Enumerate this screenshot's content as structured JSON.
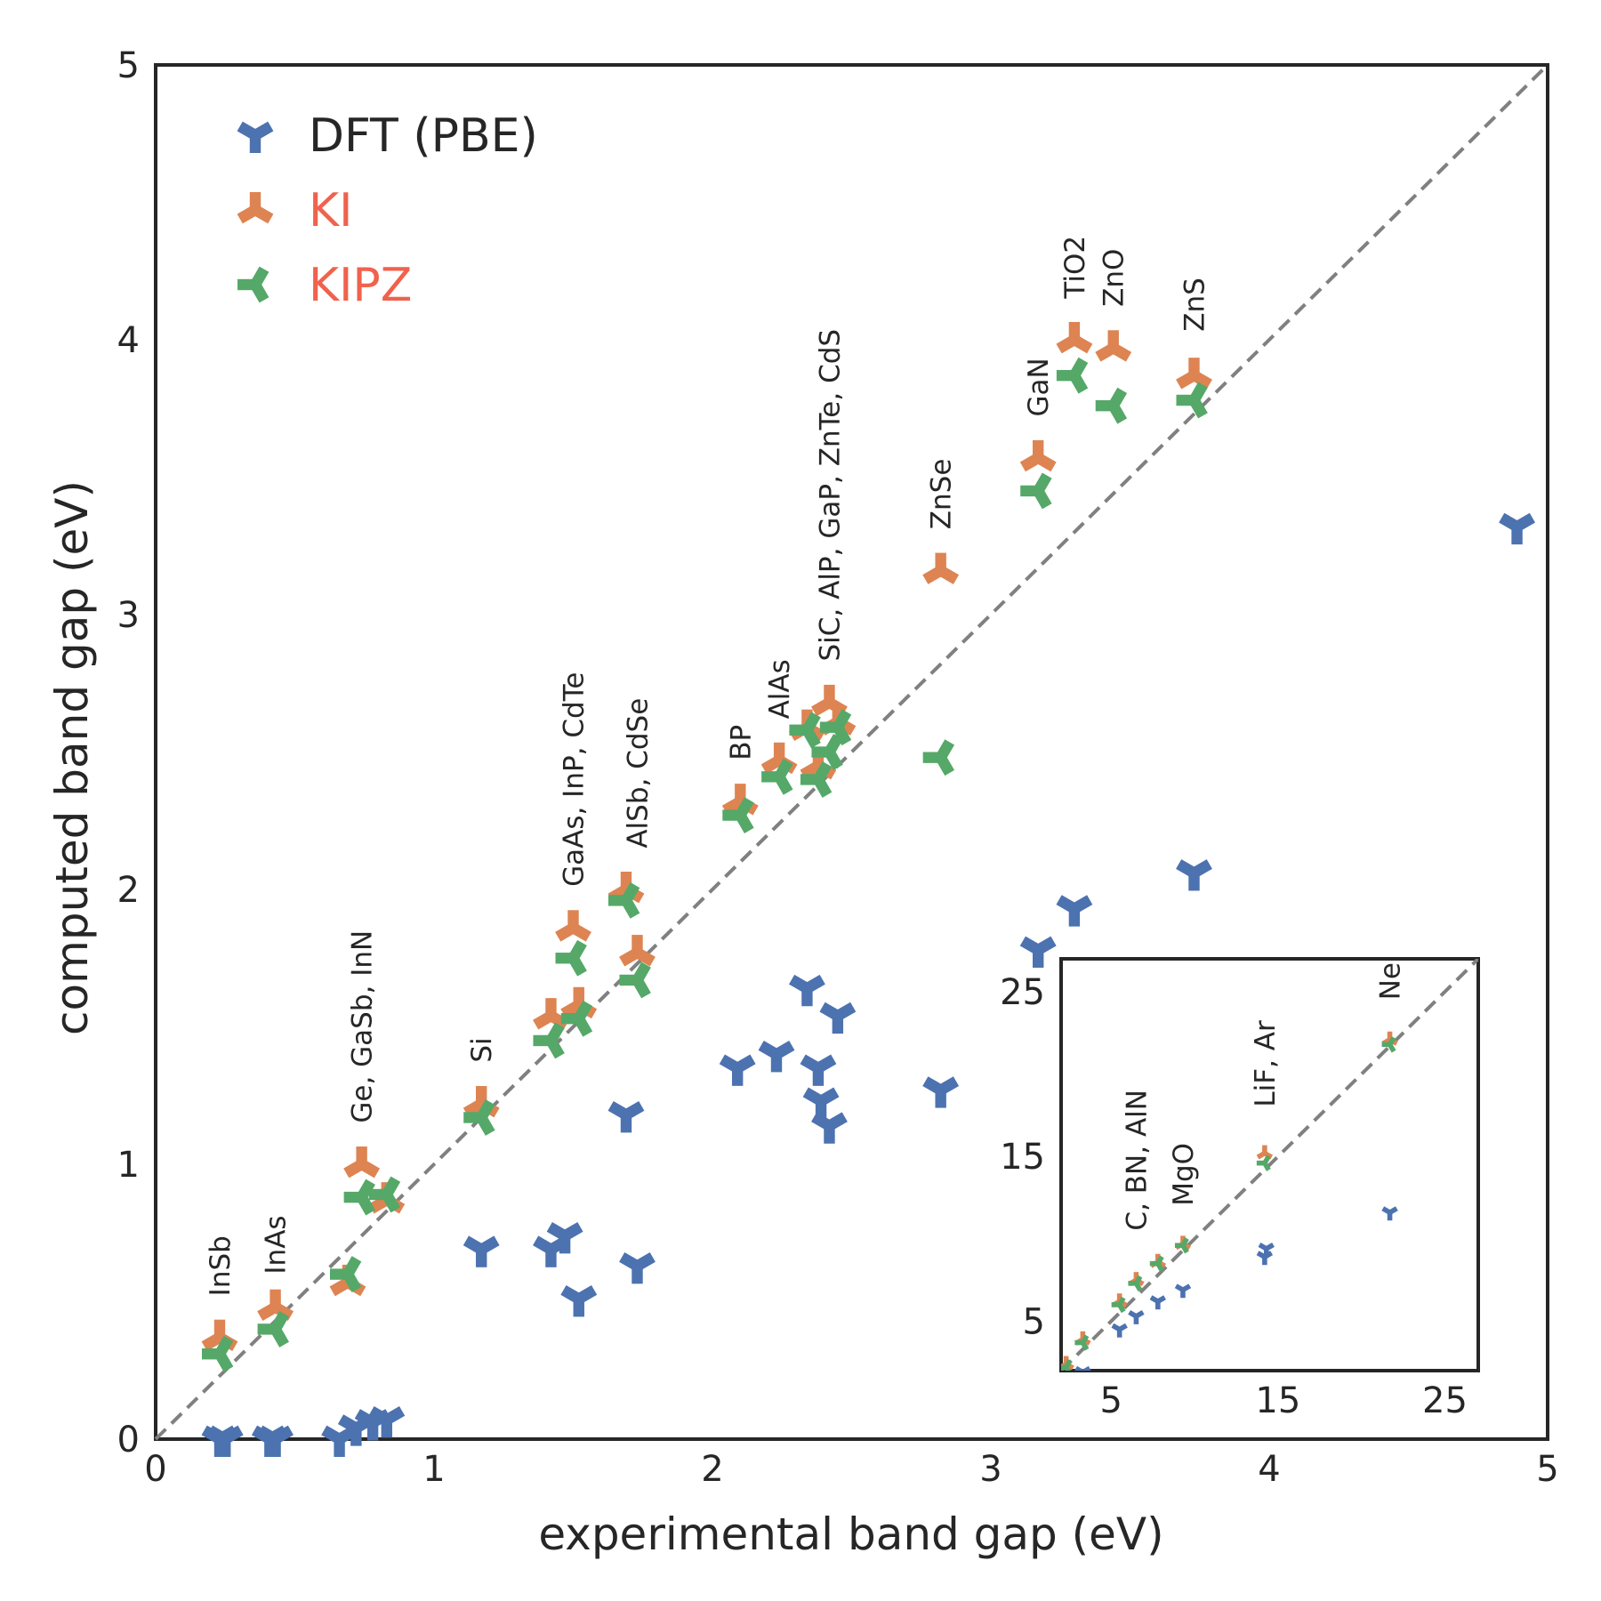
{
  "chart_data": {
    "type": "scatter",
    "xlabel": "experimental band gap (eV)",
    "ylabel": "computed band gap (eV)",
    "xlim": [
      0,
      5
    ],
    "ylim": [
      0,
      5
    ],
    "xticks": [
      "0",
      "1",
      "2",
      "3",
      "4",
      "5"
    ],
    "yticks": [
      "0",
      "1",
      "2",
      "3",
      "4",
      "5"
    ],
    "grid": false,
    "legend_position": "top-left",
    "reference_line": "y = x",
    "series": [
      {
        "name": "DFT (PBE)",
        "color": "#4c72b0",
        "marker": "tri-down",
        "points": [
          [
            0.23,
            0.0
          ],
          [
            0.25,
            0.0
          ],
          [
            0.41,
            0.0
          ],
          [
            0.43,
            0.0
          ],
          [
            0.66,
            0.0
          ],
          [
            0.72,
            0.04
          ],
          [
            0.78,
            0.06
          ],
          [
            0.83,
            0.07
          ],
          [
            1.17,
            0.69
          ],
          [
            1.42,
            0.69
          ],
          [
            1.47,
            0.74
          ],
          [
            1.52,
            0.51
          ],
          [
            1.69,
            1.18
          ],
          [
            1.73,
            0.63
          ],
          [
            2.09,
            1.35
          ],
          [
            2.23,
            1.4
          ],
          [
            2.34,
            1.64
          ],
          [
            2.38,
            1.35
          ],
          [
            2.39,
            1.23
          ],
          [
            2.42,
            1.14
          ],
          [
            2.45,
            1.54
          ],
          [
            2.82,
            1.27
          ],
          [
            3.17,
            1.78
          ],
          [
            3.3,
            1.93
          ],
          [
            3.73,
            2.06
          ],
          [
            4.89,
            3.32
          ]
        ]
      },
      {
        "name": "KI",
        "color": "#dd8452",
        "marker": "tri-up",
        "points": [
          [
            0.23,
            0.37
          ],
          [
            0.43,
            0.48
          ],
          [
            0.69,
            0.57
          ],
          [
            0.74,
            1.0
          ],
          [
            0.83,
            0.87
          ],
          [
            1.17,
            1.22
          ],
          [
            1.42,
            1.54
          ],
          [
            1.5,
            1.86
          ],
          [
            1.52,
            1.58
          ],
          [
            1.69,
            2.0
          ],
          [
            1.73,
            1.77
          ],
          [
            2.1,
            2.32
          ],
          [
            2.24,
            2.47
          ],
          [
            2.34,
            2.59
          ],
          [
            2.38,
            2.45
          ],
          [
            2.42,
            2.68
          ],
          [
            2.45,
            2.61
          ],
          [
            2.82,
            3.16
          ],
          [
            3.17,
            3.57
          ],
          [
            3.3,
            4.0
          ],
          [
            3.44,
            3.97
          ],
          [
            3.73,
            3.87
          ]
        ]
      },
      {
        "name": "KIPZ",
        "color": "#55a868",
        "marker": "tri-left",
        "points": [
          [
            0.23,
            0.31
          ],
          [
            0.43,
            0.4
          ],
          [
            0.69,
            0.6
          ],
          [
            0.74,
            0.88
          ],
          [
            0.83,
            0.89
          ],
          [
            1.17,
            1.17
          ],
          [
            1.42,
            1.45
          ],
          [
            1.5,
            1.75
          ],
          [
            1.52,
            1.53
          ],
          [
            1.69,
            1.96
          ],
          [
            1.73,
            1.67
          ],
          [
            2.1,
            2.27
          ],
          [
            2.24,
            2.41
          ],
          [
            2.34,
            2.58
          ],
          [
            2.38,
            2.4
          ],
          [
            2.42,
            2.5
          ],
          [
            2.45,
            2.59
          ],
          [
            2.82,
            2.48
          ],
          [
            3.17,
            3.45
          ],
          [
            3.3,
            3.87
          ],
          [
            3.44,
            3.76
          ],
          [
            3.73,
            3.78
          ]
        ]
      }
    ],
    "annotations": [
      {
        "text": "InSb",
        "x": 0.23,
        "y": 0.52
      },
      {
        "text": "InAs",
        "x": 0.43,
        "y": 0.6
      },
      {
        "text": "Ge, GaSb, InN",
        "x": 0.74,
        "y": 1.15
      },
      {
        "text": "Si",
        "x": 1.17,
        "y": 1.37
      },
      {
        "text": "GaAs, InP, CdTe",
        "x": 1.5,
        "y": 2.01
      },
      {
        "text": "AlSb, CdSe",
        "x": 1.73,
        "y": 2.15
      },
      {
        "text": "BP",
        "x": 2.1,
        "y": 2.47
      },
      {
        "text": "AlAs",
        "x": 2.24,
        "y": 2.62
      },
      {
        "text": "SiC, AlP, GaP, ZnTe, CdS",
        "x": 2.42,
        "y": 2.83
      },
      {
        "text": "ZnSe",
        "x": 2.82,
        "y": 3.31
      },
      {
        "text": "GaN",
        "x": 3.17,
        "y": 3.72
      },
      {
        "text": "TiO2",
        "x": 3.3,
        "y": 4.15
      },
      {
        "text": "ZnO",
        "x": 3.44,
        "y": 4.12
      },
      {
        "text": "ZnS",
        "x": 3.73,
        "y": 4.03
      }
    ],
    "inset": {
      "xlim": [
        2,
        27
      ],
      "ylim": [
        2,
        27
      ],
      "xticks": [
        "5",
        "15",
        "25"
      ],
      "yticks": [
        "5",
        "15",
        "25"
      ],
      "reference_line": "y = x",
      "series": [
        {
          "name": "DFT (PBE)",
          "points": [
            [
              2.3,
              0.0
            ],
            [
              3.3,
              1.9
            ],
            [
              5.5,
              4.5
            ],
            [
              6.5,
              5.3
            ],
            [
              7.8,
              6.2
            ],
            [
              9.3,
              6.9
            ],
            [
              14.2,
              8.9
            ],
            [
              14.3,
              9.4
            ],
            [
              21.7,
              11.6
            ]
          ]
        },
        {
          "name": "KI",
          "points": [
            [
              2.3,
              2.4
            ],
            [
              3.3,
              3.9
            ],
            [
              5.5,
              6.2
            ],
            [
              6.5,
              7.5
            ],
            [
              7.8,
              8.6
            ],
            [
              9.3,
              9.7
            ],
            [
              14.2,
              15.2
            ],
            [
              21.7,
              22.1
            ]
          ]
        },
        {
          "name": "KIPZ",
          "points": [
            [
              2.3,
              2.2
            ],
            [
              3.3,
              3.7
            ],
            [
              5.5,
              6.0
            ],
            [
              6.5,
              7.3
            ],
            [
              7.8,
              8.5
            ],
            [
              9.3,
              9.6
            ],
            [
              14.2,
              14.6
            ],
            [
              21.7,
              21.8
            ]
          ]
        }
      ],
      "annotations": [
        {
          "text": "C, BN, AlN",
          "x": 6.5,
          "y": 10.5
        },
        {
          "text": "MgO",
          "x": 9.3,
          "y": 12.0
        },
        {
          "text": "LiF, Ar",
          "x": 14.2,
          "y": 18.0
        },
        {
          "text": "Ne",
          "x": 21.7,
          "y": 24.5
        }
      ]
    }
  }
}
